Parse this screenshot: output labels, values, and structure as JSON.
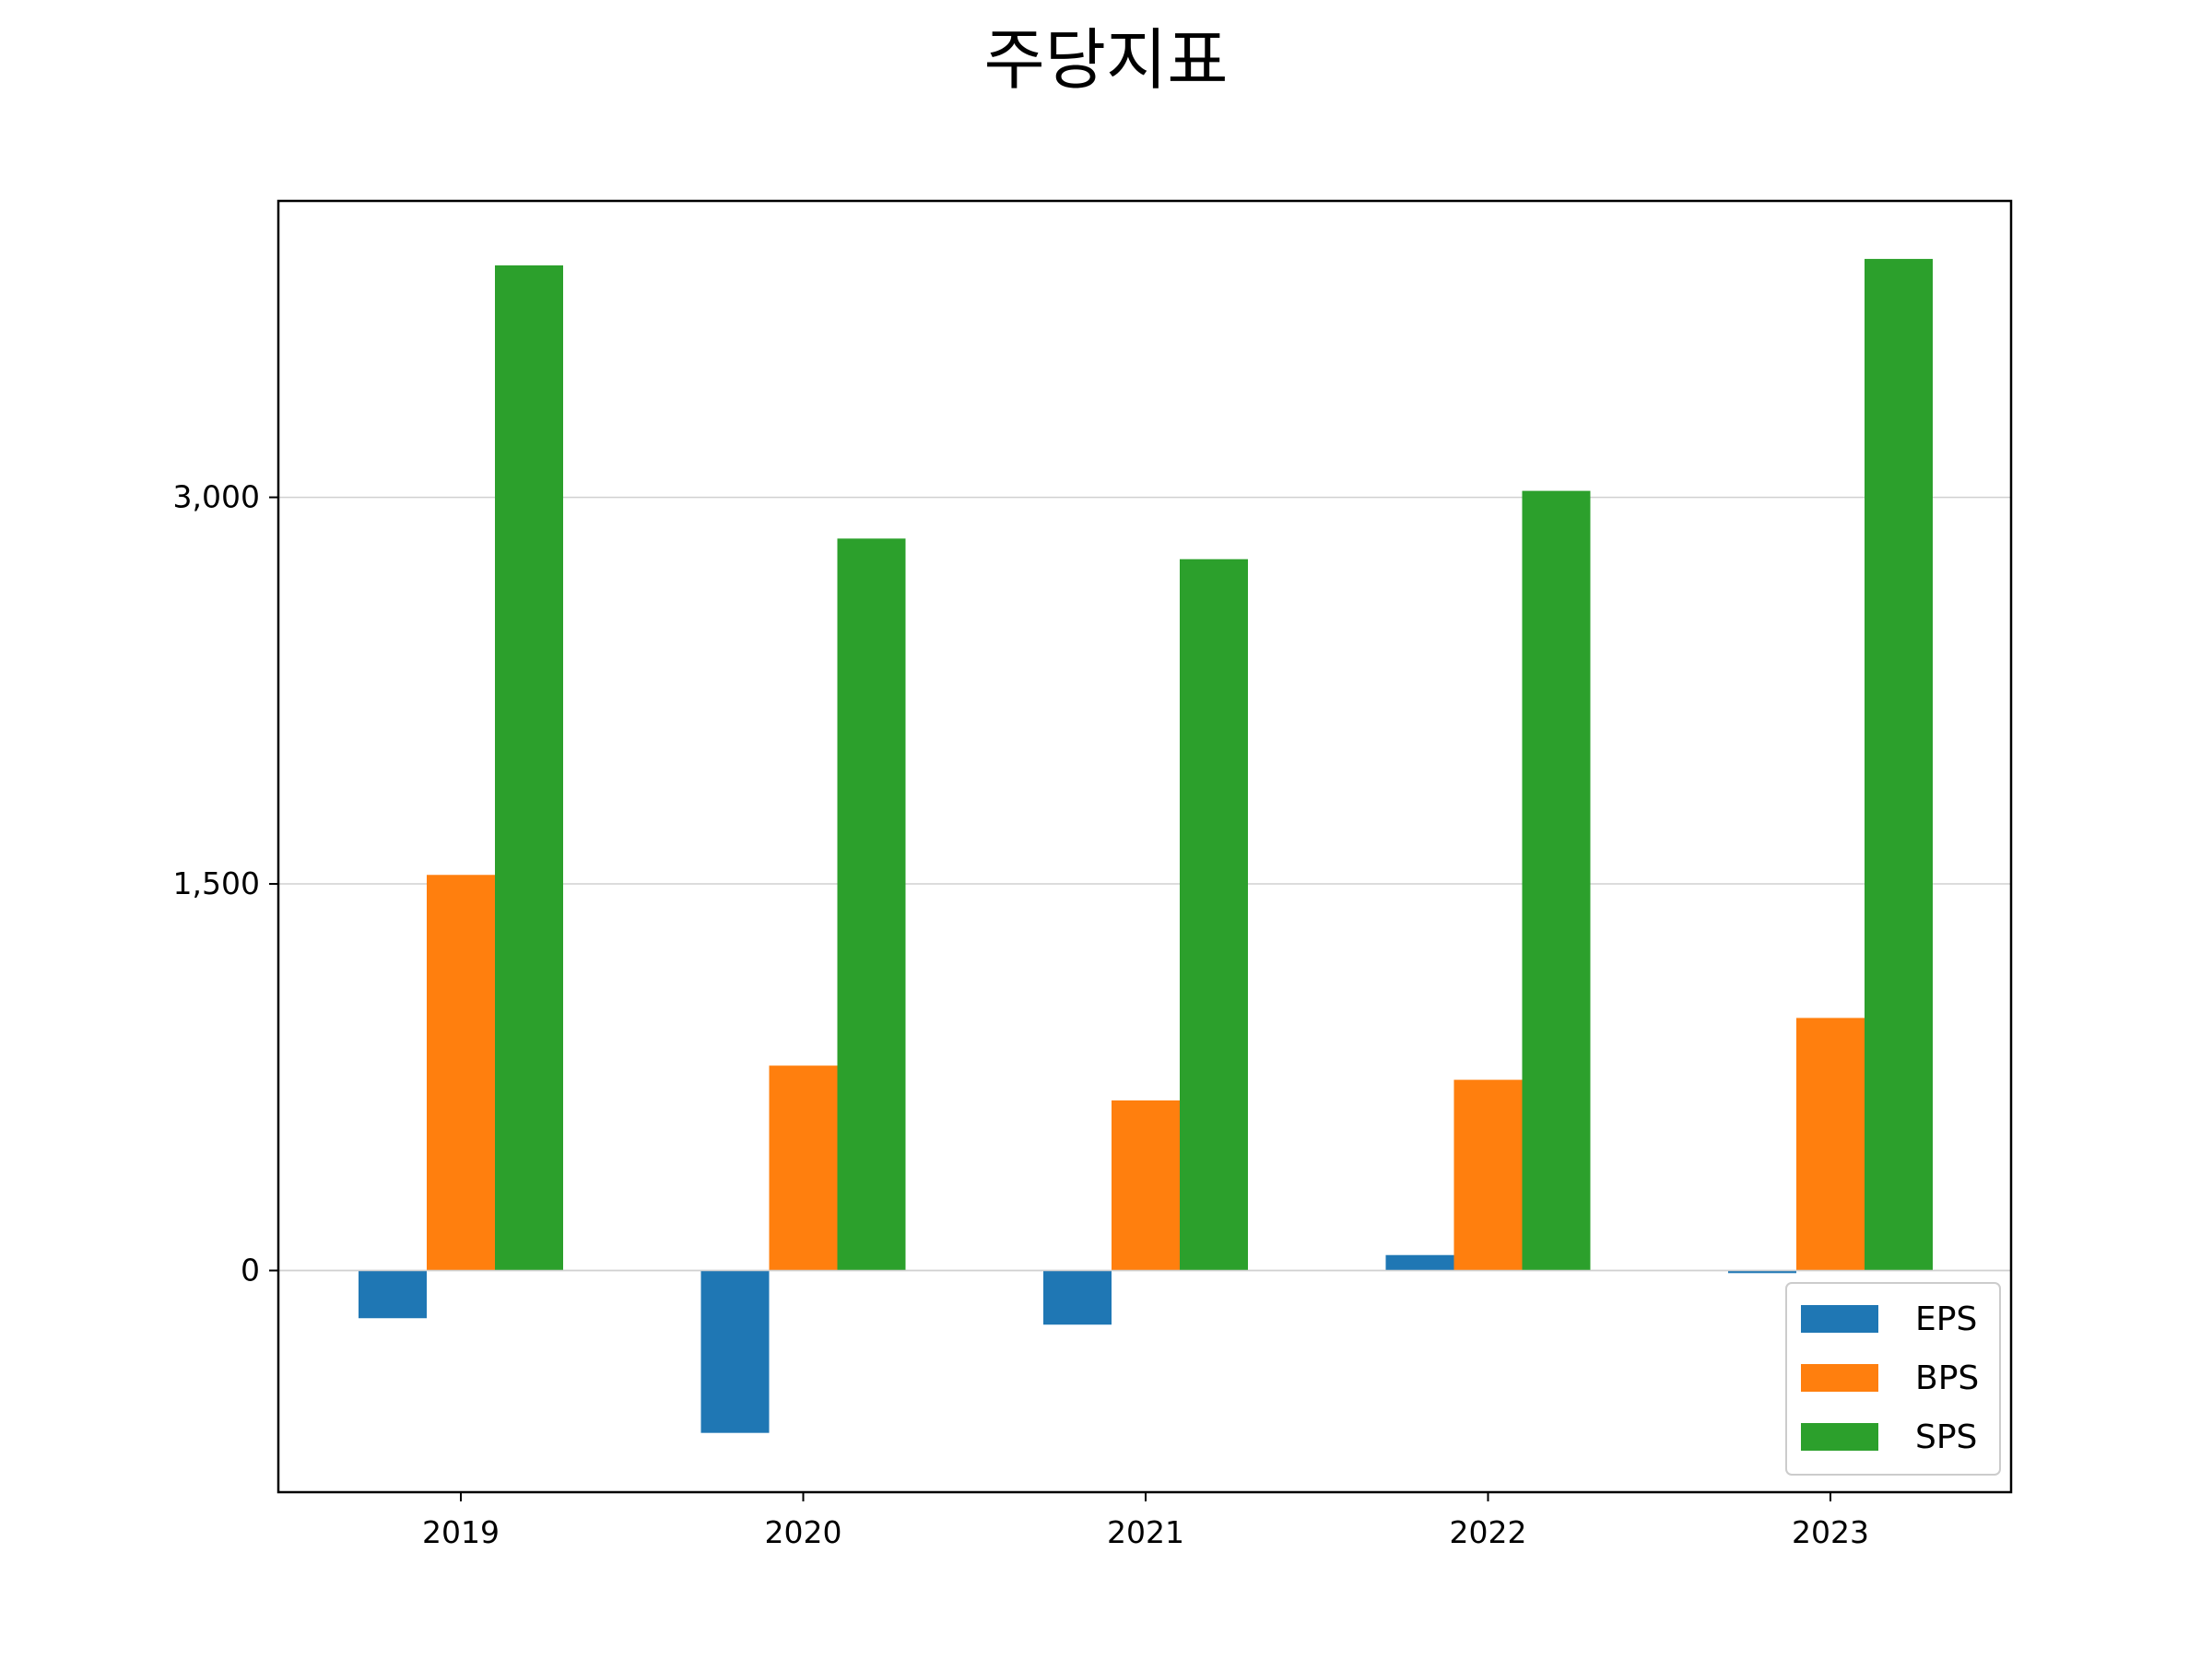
{
  "chart_data": {
    "type": "bar",
    "title": "주당지표",
    "xlabel": "",
    "ylabel": "",
    "categories": [
      "2019",
      "2020",
      "2021",
      "2022",
      "2023"
    ],
    "series": [
      {
        "name": "EPS",
        "color": "#1f77b4",
        "values": [
          -185,
          -630,
          -210,
          60,
          -10
        ]
      },
      {
        "name": "BPS",
        "color": "#ff7f0e",
        "values": [
          1535,
          795,
          660,
          740,
          980
        ]
      },
      {
        "name": "SPS",
        "color": "#2ca02c",
        "values": [
          3900,
          2840,
          2760,
          3025,
          3925
        ]
      }
    ],
    "ylim": [
      -860,
      4150
    ],
    "yticks": [
      0,
      1500,
      3000
    ],
    "ytick_labels": [
      "0",
      "1,500",
      "3,000"
    ],
    "grid": "y",
    "legend_position": "lower-right"
  }
}
